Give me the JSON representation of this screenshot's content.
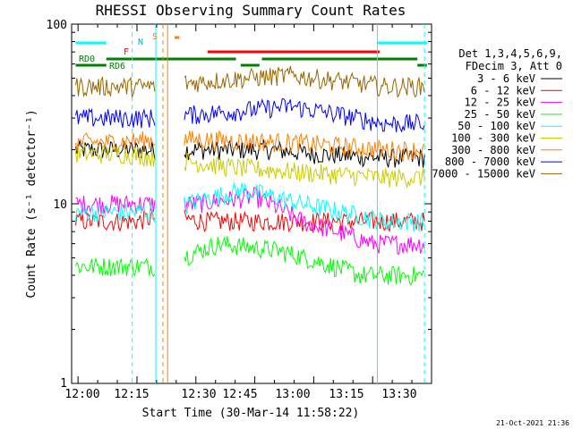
{
  "chart_data": {
    "type": "line",
    "title": "RHESSI Observing Summary Count Rates",
    "xlabel": "Start Time (30-Mar-14 11:58:22)",
    "ylabel": "Count Rate (s⁻¹ detector⁻¹)",
    "y_scale": "log",
    "ylim": [
      1,
      100
    ],
    "x_ticks": [
      "12:00",
      "12:15",
      "12:30",
      "12:45",
      "13:00",
      "13:15",
      "13:30"
    ],
    "y_ticks": [
      "1",
      "10",
      "100"
    ],
    "legend_header": [
      "Det 1,3,4,5,6,9,",
      "FDecim 3, Att 0"
    ],
    "legend_position": "right",
    "timestamp": "21-Oct-2021 21:36",
    "flag_labels": {
      "rd0": "RD0",
      "rd6": "RD6",
      "f": "F",
      "n": "N",
      "s": "S"
    },
    "series": [
      {
        "name": "3 - 6 keV",
        "color": "#000000",
        "values": [
          [
            12.45,
            20
          ],
          [
            12.83,
            20
          ],
          [
            13.0,
            19
          ],
          [
            13.3,
            18
          ]
        ]
      },
      {
        "name": "6 - 12 keV",
        "color": "#ff0000",
        "values": [
          [
            12.15,
            8
          ],
          [
            12.25,
            8
          ],
          [
            12.35,
            8.5
          ],
          [
            12.55,
            8
          ]
        ]
      },
      {
        "name": "12 - 25 keV",
        "color": "#ff00ff",
        "values": [
          [
            12.5,
            10
          ],
          [
            12.75,
            11
          ],
          [
            12.95,
            8
          ],
          [
            13.25,
            6
          ]
        ]
      },
      {
        "name": "25 - 50 keV",
        "color": "#00ff00",
        "values": [
          [
            12.35,
            4.5
          ],
          [
            12.6,
            6
          ],
          [
            12.85,
            5.5
          ],
          [
            13.2,
            4
          ]
        ]
      },
      {
        "name": "50 - 100 keV",
        "color": "#00ffff",
        "values": [
          [
            12.35,
            9
          ],
          [
            12.7,
            12
          ],
          [
            12.95,
            10
          ],
          [
            13.3,
            8
          ]
        ]
      },
      {
        "name": "100 - 300 keV",
        "color": "#cccc00",
        "values": [
          [
            12.2,
            19
          ],
          [
            12.65,
            16
          ],
          [
            12.95,
            15
          ],
          [
            13.3,
            14
          ]
        ]
      },
      {
        "name": "300 - 800 keV",
        "color": "#ff8000",
        "values": [
          [
            12.1,
            22
          ],
          [
            12.4,
            23
          ],
          [
            12.9,
            22
          ],
          [
            13.3,
            20
          ]
        ]
      },
      {
        "name": "800 - 7000 keV",
        "color": "#0000ff",
        "values": [
          [
            12.3,
            30
          ],
          [
            12.7,
            33
          ],
          [
            12.9,
            35
          ],
          [
            13.3,
            28
          ]
        ]
      },
      {
        "name": "7000 - 15000 keV",
        "color": "#996600",
        "values": [
          [
            12.3,
            45
          ],
          [
            12.7,
            50
          ],
          [
            12.9,
            52
          ],
          [
            13.3,
            45
          ]
        ]
      }
    ]
  }
}
